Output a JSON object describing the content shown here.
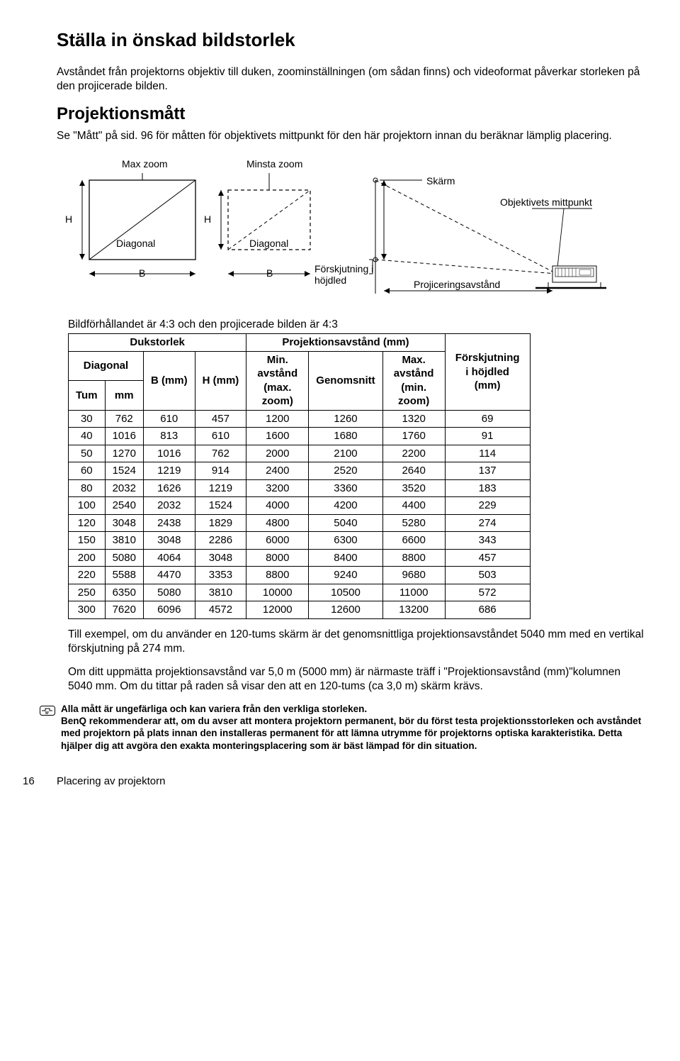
{
  "title": "Ställa in önskad bildstorlek",
  "intro": "Avståndet från projektorns objektiv till duken, zoominställningen (om sådan finns) och videoformat påverkar storleken på den projicerade bilden.",
  "section2": "Projektionsmått",
  "p2": "Se \"Mått\" på sid. 96 för måtten för objektivets mittpunkt för den här projektorn innan du beräknar lämplig placering.",
  "diagram": {
    "max_zoom": "Max zoom",
    "min_zoom": "Minsta zoom",
    "H": "H",
    "diagonal": "Diagonal",
    "B": "B",
    "forskjutning": "Förskjutning i höjdled",
    "skarm": "Skärm",
    "objektiv": "Objektivets mittpunkt",
    "projavstand": "Projiceringsavstånd"
  },
  "table_caption": "Bildförhållandet är 4:3 och den projicerade bilden är 4:3",
  "headers": {
    "dukstorlek": "Dukstorlek",
    "projavstand": "Projektionsavstånd (mm)",
    "diagonal": "Diagonal",
    "tum": "Tum",
    "mm": "mm",
    "bmm": "B (mm)",
    "hmm": "H (mm)",
    "min": "Min. avstånd (max. zoom)",
    "genom": "Genomsnitt",
    "max": "Max. avstånd (min. zoom)",
    "forsk": "Förskjutning i höjdled (mm)"
  },
  "rows": [
    [
      "30",
      "762",
      "610",
      "457",
      "1200",
      "1260",
      "1320",
      "69"
    ],
    [
      "40",
      "1016",
      "813",
      "610",
      "1600",
      "1680",
      "1760",
      "91"
    ],
    [
      "50",
      "1270",
      "1016",
      "762",
      "2000",
      "2100",
      "2200",
      "114"
    ],
    [
      "60",
      "1524",
      "1219",
      "914",
      "2400",
      "2520",
      "2640",
      "137"
    ],
    [
      "80",
      "2032",
      "1626",
      "1219",
      "3200",
      "3360",
      "3520",
      "183"
    ],
    [
      "100",
      "2540",
      "2032",
      "1524",
      "4000",
      "4200",
      "4400",
      "229"
    ],
    [
      "120",
      "3048",
      "2438",
      "1829",
      "4800",
      "5040",
      "5280",
      "274"
    ],
    [
      "150",
      "3810",
      "3048",
      "2286",
      "6000",
      "6300",
      "6600",
      "343"
    ],
    [
      "200",
      "5080",
      "4064",
      "3048",
      "8000",
      "8400",
      "8800",
      "457"
    ],
    [
      "220",
      "5588",
      "4470",
      "3353",
      "8800",
      "9240",
      "9680",
      "503"
    ],
    [
      "250",
      "6350",
      "5080",
      "3810",
      "10000",
      "10500",
      "11000",
      "572"
    ],
    [
      "300",
      "7620",
      "6096",
      "4572",
      "12000",
      "12600",
      "13200",
      "686"
    ]
  ],
  "p3": "Till exempel, om du använder en 120-tums skärm är det genomsnittliga projektionsavståndet 5040 mm med en vertikal förskjutning på 274 mm.",
  "p4": "Om ditt uppmätta projektionsavstånd var 5,0 m (5000 mm) är närmaste träff i \"Projektionsavstånd (mm)\"kolumnen 5040 mm. Om du tittar på raden så visar den att en 120-tums (ca 3,0 m) skärm krävs.",
  "note": "Alla mått är ungefärliga och kan variera från den verkliga storleken.\nBenQ rekommenderar att, om du avser att montera projektorn permanent, bör du först testa projektionsstorleken och avståndet med projektorn på plats innan den installeras permanent för att lämna utrymme för projektorns optiska karakteristika. Detta hjälper dig att avgöra den exakta monteringsplacering som är bäst lämpad för din situation.",
  "footer": {
    "page": "16",
    "section": "Placering av projektorn"
  }
}
